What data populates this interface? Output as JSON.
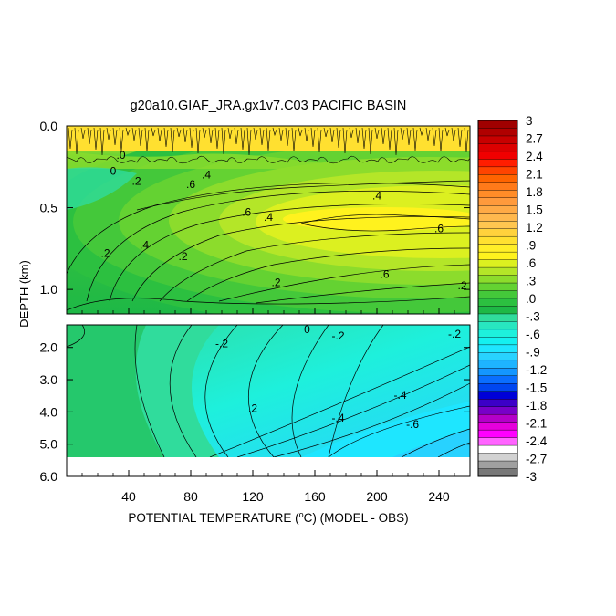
{
  "chart_data": {
    "type": "heatmap",
    "title": "g20a10.GIAF_JRA.gx1v7.C03 PACIFIC BASIN",
    "xlabel": "POTENTIAL TEMPERATURE (°C) (MODEL - OBS)",
    "xlabel_parts": [
      "POTENTIAL TEMPERATURE (",
      "o",
      "C) (MODEL - OBS)"
    ],
    "ylabel": "DEPTH (km)",
    "x_ticks": [
      "40",
      "80",
      "120",
      "160",
      "200",
      "240"
    ],
    "x_tick_values": [
      40,
      80,
      120,
      160,
      200,
      240
    ],
    "xlim": [
      0,
      260
    ],
    "upper_panel": {
      "ylim": [
        0.0,
        1.15
      ],
      "y_ticks": [
        "0.0",
        "0.5",
        "1.0"
      ],
      "y_tick_values": [
        0.0,
        0.5,
        1.0
      ]
    },
    "lower_panel": {
      "ylim": [
        1.3,
        6.0
      ],
      "data_bottom": 5.3,
      "y_ticks": [
        "2.0",
        "3.0",
        "4.0",
        "5.0",
        "6.0"
      ],
      "y_tick_values": [
        2.0,
        3.0,
        4.0,
        5.0,
        6.0
      ]
    },
    "colorbar": {
      "levels": [
        -3,
        -2.85,
        -2.7,
        -2.55,
        -2.4,
        -2.25,
        -2.1,
        -1.95,
        -1.8,
        -1.65,
        -1.5,
        -1.35,
        -1.2,
        -1.05,
        -0.9,
        -0.75,
        -0.6,
        -0.45,
        -0.3,
        -0.15,
        0,
        0.15,
        0.3,
        0.45,
        0.6,
        0.75,
        0.9,
        1.05,
        1.2,
        1.35,
        1.5,
        1.65,
        1.8,
        1.95,
        2.1,
        2.25,
        2.4,
        2.55,
        2.7,
        2.85,
        3
      ],
      "labels": [
        "3",
        "2.7",
        "2.4",
        "2.1",
        "1.8",
        "1.5",
        "1.2",
        ".9",
        ".6",
        ".3",
        ".0",
        "-.3",
        "-.6",
        "-.9",
        "-1.2",
        "-1.5",
        "-1.8",
        "-2.1",
        "-2.4",
        "-2.7",
        "-3"
      ],
      "colors_top_to_bottom": [
        "#a00000",
        "#b00000",
        "#c80000",
        "#dc0000",
        "#f00000",
        "#ff1e00",
        "#ff4400",
        "#ff6400",
        "#ff7a1a",
        "#ff8c28",
        "#ff9a3c",
        "#ffaa46",
        "#ffb84e",
        "#ffc650",
        "#ffd23c",
        "#ffe030",
        "#ffee28",
        "#fff21e",
        "#dcf020",
        "#b4e628",
        "#8cdc2c",
        "#64d232",
        "#44c83a",
        "#2cc040",
        "#1eb846",
        "#30dc9c",
        "#28e6c0",
        "#1ef0dc",
        "#14f0f0",
        "#1ee6ff",
        "#28d2ff",
        "#1eb4ff",
        "#1496ff",
        "#0a6eff",
        "#0046f0",
        "#0000d8",
        "#3c00c8",
        "#7800c8",
        "#b400c8",
        "#e600dc",
        "#ff00ff",
        "#ff64ff",
        "#ffffff",
        "#d2d2d2",
        "#a0a0a0",
        "#787878"
      ]
    },
    "contour_labels_upper": [
      ".6",
      ".4",
      ".6",
      ".6",
      ".6",
      ".4",
      ".4",
      ".2",
      ".2",
      ".2",
      ".2",
      "0",
      ".0",
      ".4",
      ".2"
    ],
    "contour_labels_lower": [
      "0",
      "-.2",
      "-.2",
      "-.2",
      ".2",
      "-.4",
      "-.4",
      "-.6"
    ]
  }
}
